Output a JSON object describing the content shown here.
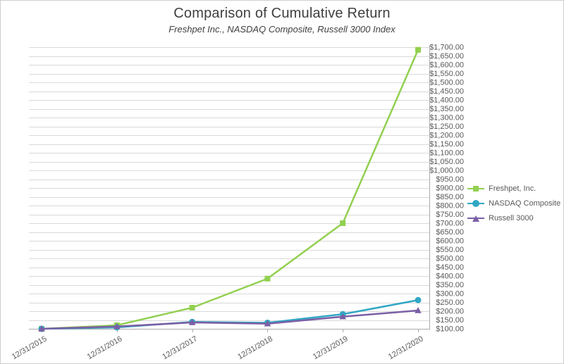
{
  "chart_data": {
    "type": "line",
    "title": "Comparison of Cumulative Return",
    "subtitle": "Freshpet Inc., NASDAQ Composite, Russell 3000 Index",
    "categories": [
      "12/31/2015",
      "12/31/2016",
      "12/31/2017",
      "12/31/2018",
      "12/31/2019",
      "12/31/2020"
    ],
    "series": [
      {
        "name": "Freshpet, Inc.",
        "color": "#92D050",
        "marker": "square",
        "values": [
          100.0,
          120.0,
          220.0,
          385.0,
          700.0,
          1685.0
        ]
      },
      {
        "name": "NASDAQ Composite",
        "color": "#31A7C4",
        "marker": "circle",
        "values": [
          100.0,
          108.0,
          139.0,
          134.0,
          183.0,
          263.0
        ]
      },
      {
        "name": "Russell 3000",
        "color": "#7A5FA5",
        "marker": "triangle",
        "values": [
          100.0,
          113.0,
          136.0,
          129.0,
          169.0,
          204.0
        ]
      }
    ],
    "ylim": [
      100,
      1700
    ],
    "ytick_step": 50,
    "ylabel_format": "currency_usd_2dp",
    "grid": true,
    "legend_position": "right",
    "colors": {
      "grid": "#D9D9D9",
      "axis": "#ABABAB",
      "text": "#595959",
      "title": "#404040"
    }
  }
}
